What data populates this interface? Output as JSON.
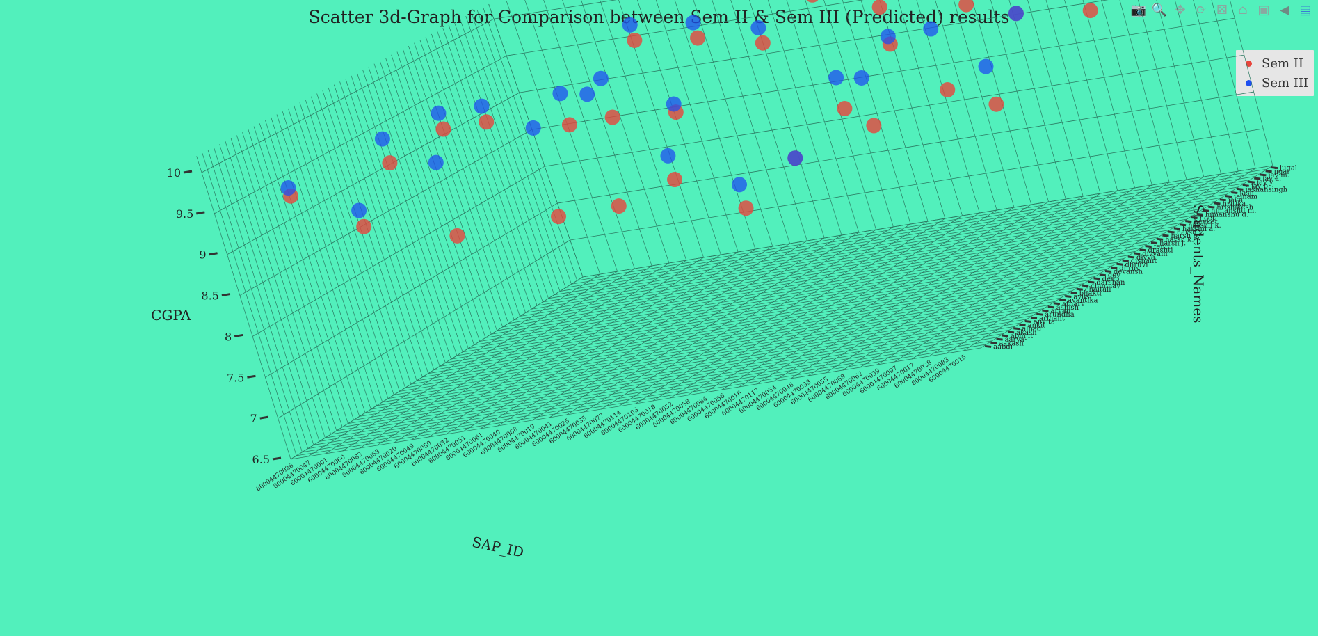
{
  "chart_data": {
    "type": "scatter",
    "title": "Scatter 3d-Graph for Comparison between Sem II & Sem III (Predicted) results",
    "axes": {
      "x": {
        "label": "SAP_ID",
        "type": "category"
      },
      "y": {
        "label": "Students_Names",
        "type": "category"
      },
      "z": {
        "label": "CGPA",
        "range": [
          6.5,
          10
        ],
        "ticks": [
          "6.5",
          "7",
          "7.5",
          "8",
          "8.5",
          "9",
          "9.5",
          "10"
        ]
      }
    },
    "legend_position": "top-right",
    "series": [
      {
        "name": "Sem II",
        "color": "#e8453c"
      },
      {
        "name": "Sem III",
        "color": "#1f4ff0"
      }
    ],
    "sap_tick_labels": [
      "60004470026",
      "60004470047",
      "60004470001",
      "60004470060",
      "60004470082",
      "60004470063",
      "60004470020",
      "60004470049",
      "60004470050",
      "60004470032",
      "60004470051",
      "60004470061",
      "60004470040",
      "60004470068",
      "60004470019",
      "60004470041",
      "60004470025",
      "60004470035",
      "60004470077",
      "60004470114",
      "60004470103",
      "60004470018",
      "60004470052",
      "60004470058",
      "60004470084",
      "60004470056",
      "60004470016",
      "60004470117",
      "60004470054",
      "60004470048",
      "60004470033",
      "60004470055",
      "60004470069",
      "60004470062",
      "60004470039",
      "60004470097",
      "60004470017",
      "60004470028",
      "60004470083",
      "60004470015"
    ],
    "student_tick_labels": [
      "aabdi",
      "aakash",
      "aarya",
      "abhijit",
      "akash",
      "alhad",
      "ankit",
      "anvita",
      "arihant",
      "arundha",
      "aryan",
      "ashish",
      "atharv",
      "avantika",
      "ayush",
      "bhakti",
      "chaitali",
      "chinmay",
      "darshan",
      "deep",
      "dev",
      "devansh",
      "dhruv",
      "dhruvi",
      "dishant",
      "divya",
      "divyam",
      "drashti",
      "fenil",
      "harsh j.",
      "harsh k.",
      "harsh p.",
      "harsh y.",
      "harshil a.",
      "harshil k.",
      "heeket",
      "heet",
      "himanshu d.",
      "himanshu m.",
      "hrishikesh",
      "hritika",
      "jai a.",
      "jainam",
      "jash",
      "jashansingh",
      "jay p.",
      "jay y.",
      "jay a.",
      "jay m.",
      "jigar",
      "jugal"
    ],
    "points": [
      {
        "sap": 3,
        "name": 2,
        "sem2": 9.5,
        "sem3": 9.6
      },
      {
        "sap": 5,
        "name": 6,
        "sem2": 8.9,
        "sem3": 9.1
      },
      {
        "sap": 6,
        "name": 10,
        "sem2": 9.5,
        "sem3": 9.8
      },
      {
        "sap": 8,
        "name": 14,
        "sem2": 9.7,
        "sem3": 9.9
      },
      {
        "sap": 9,
        "name": 18,
        "sem2": 9.6,
        "sem3": 9.8
      },
      {
        "sap": 11,
        "name": 3,
        "sem2": 8.7,
        "sem3": 9.6
      },
      {
        "sap": 12,
        "name": 22,
        "sem2": 9.3,
        "sem3": 9.7
      },
      {
        "sap": 13,
        "name": 26,
        "sem2": 9.2,
        "sem3": 9.7
      },
      {
        "sap": 14,
        "name": 30,
        "sem2": 10.0,
        "sem3": 10.2
      },
      {
        "sap": 15,
        "name": 8,
        "sem2": 8.6,
        "sem3": 9.7
      },
      {
        "sap": 16,
        "name": 34,
        "sem2": 9.8,
        "sem3": 10.0
      },
      {
        "sap": 17,
        "name": 12,
        "sem2": 8.5,
        "sem3": 9.9
      },
      {
        "sap": 18,
        "name": 38,
        "sem2": 9.5,
        "sem3": 9.7
      },
      {
        "sap": 19,
        "name": 16,
        "sem2": 8.6,
        "sem3": 8.9
      },
      {
        "sap": 20,
        "name": 42,
        "sem2": 9.9,
        "sem3": 10.1
      },
      {
        "sap": 21,
        "name": 20,
        "sem2": 8.0,
        "sem3": 8.3
      },
      {
        "sap": 22,
        "name": 46,
        "sem2": 9.5,
        "sem3": 9.9
      },
      {
        "sap": 23,
        "name": 24,
        "sem2": 8.4,
        "sem3": 8.4
      },
      {
        "sap": 24,
        "name": 5,
        "sem2": 9.7,
        "sem3": 9.8
      },
      {
        "sap": 25,
        "name": 28,
        "sem2": 8.8,
        "sem3": 9.2
      },
      {
        "sap": 26,
        "name": 48,
        "sem2": 9.3,
        "sem3": 9.7
      },
      {
        "sap": 27,
        "name": 32,
        "sem2": 9.4,
        "sem3": 9.5
      },
      {
        "sap": 28,
        "name": 36,
        "sem2": 8.6,
        "sem3": 9.4
      },
      {
        "sap": 29,
        "name": 40,
        "sem2": 8.2,
        "sem3": 8.7
      },
      {
        "sap": 30,
        "name": 44,
        "sem2": 9.2,
        "sem3": 9.2
      },
      {
        "sap": 31,
        "name": 15,
        "sem2": 8.9,
        "sem3": 9.5
      },
      {
        "sap": 32,
        "name": 49,
        "sem2": 9.6,
        "sem3": 10.1
      },
      {
        "sap": 33,
        "name": 47,
        "sem2": 9.0,
        "sem3": 9.7
      }
    ]
  }
}
